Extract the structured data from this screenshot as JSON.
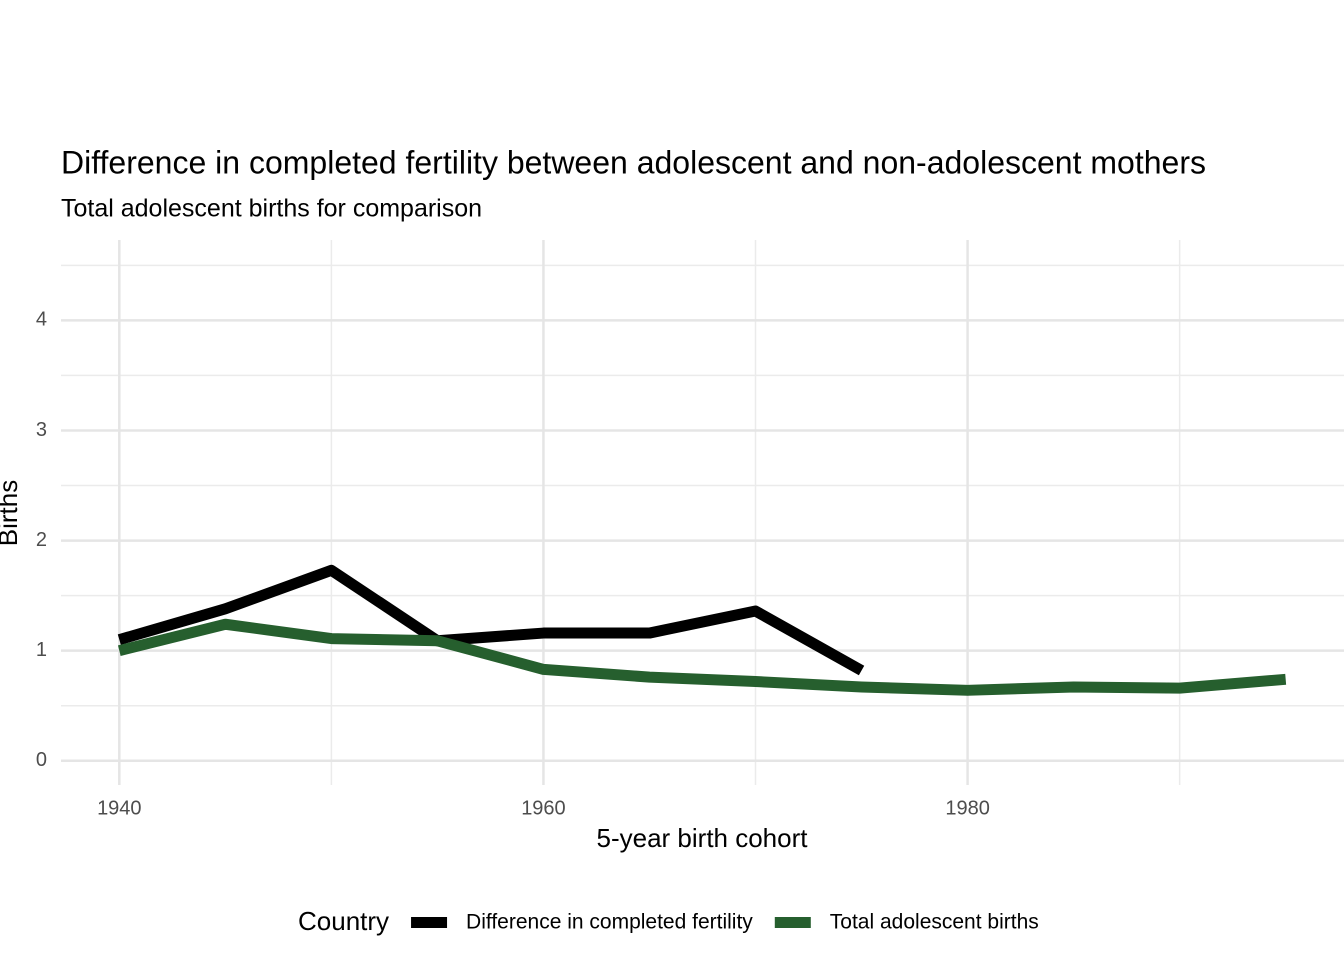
{
  "chart_data": {
    "type": "line",
    "title": "Difference in completed fertility between adolescent and non-adolescent mothers",
    "subtitle": "Total adolescent births for comparison",
    "x_label": "5-year birth cohort",
    "y_label": "Births",
    "legend_title": "Country",
    "legend_position": "bottom",
    "x": [
      1940,
      1945,
      1950,
      1955,
      1960,
      1965,
      1970,
      1975,
      1980,
      1985,
      1990,
      1995
    ],
    "series": [
      {
        "name": "Difference in completed fertility",
        "color": "#000000",
        "values": [
          1.1,
          1.38,
          1.73,
          1.09,
          1.16,
          1.16,
          1.36,
          0.82,
          null,
          null,
          null,
          null
        ]
      },
      {
        "name": "Total adolescent births",
        "color": "#265f2e",
        "values": [
          1.0,
          1.24,
          1.11,
          1.09,
          0.83,
          0.76,
          0.72,
          0.67,
          0.64,
          0.67,
          0.66,
          0.74
        ]
      }
    ],
    "xlim": [
      1937.25,
      1997.75
    ],
    "ylim": [
      -0.22,
      4.73
    ],
    "xticks": [
      1940,
      1960,
      1980
    ],
    "yticks": [
      0,
      1,
      2,
      3,
      4
    ],
    "minor_xticks": [
      1950,
      1970,
      1990
    ],
    "minor_yticks": [
      0.5,
      1.5,
      2.5,
      3.5,
      4.5
    ],
    "grid": true
  }
}
